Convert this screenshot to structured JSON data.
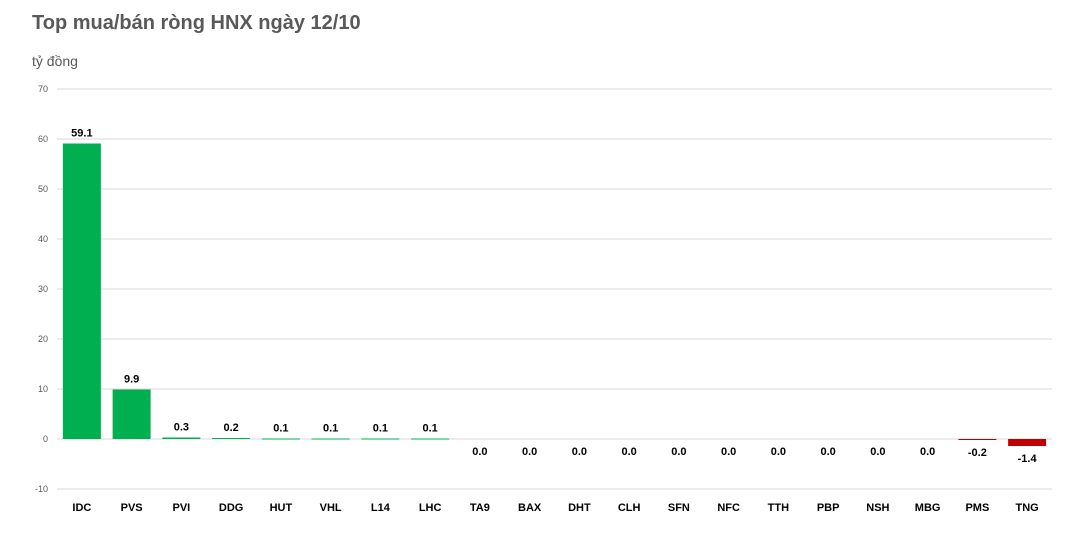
{
  "chart_data": {
    "type": "bar",
    "title": "Top mua/bán ròng HNX ngày 12/10",
    "ylabel": "tỷ đồng",
    "xlabel": "",
    "ylim": [
      -10,
      70
    ],
    "yticks": [
      -10,
      0,
      10,
      20,
      30,
      40,
      50,
      60,
      70
    ],
    "grid": true,
    "categories": [
      "IDC",
      "PVS",
      "PVI",
      "DDG",
      "HUT",
      "VHL",
      "L14",
      "LHC",
      "TA9",
      "BAX",
      "DHT",
      "CLH",
      "SFN",
      "NFC",
      "TTH",
      "PBP",
      "NSH",
      "MBG",
      "PMS",
      "TNG"
    ],
    "values": [
      59.1,
      9.9,
      0.3,
      0.2,
      0.1,
      0.1,
      0.1,
      0.1,
      0.0,
      0.0,
      0.0,
      0.0,
      0.0,
      0.0,
      0.0,
      0.0,
      0.0,
      0.0,
      -0.2,
      -1.4
    ],
    "data_labels": [
      "59.1",
      "9.9",
      "0.3",
      "0.2",
      "0.1",
      "0.1",
      "0.1",
      "0.1",
      "0.0",
      "0.0",
      "0.0",
      "0.0",
      "0.0",
      "0.0",
      "0.0",
      "0.0",
      "0.0",
      "0.0",
      "-0.2",
      "-1.4"
    ],
    "colors": {
      "positive": "#00b050",
      "negative": "#c00000"
    }
  }
}
